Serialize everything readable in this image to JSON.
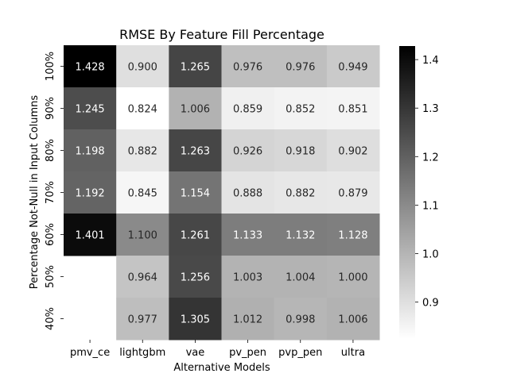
{
  "chart_data": {
    "type": "heatmap",
    "title": "RMSE By Feature Fill Percentage",
    "xlabel": "Alternative Models",
    "ylabel": "Percentage Not-Null in Input Columns",
    "columns": [
      "pmv_ce",
      "lightgbm",
      "vae",
      "pv_pen",
      "pvp_pen",
      "ultra"
    ],
    "rows": [
      "100%",
      "90%",
      "80%",
      "70%",
      "60%",
      "50%",
      "40%"
    ],
    "values": [
      [
        1.428,
        0.9,
        1.265,
        0.976,
        0.976,
        0.949
      ],
      [
        1.245,
        0.824,
        1.006,
        0.859,
        0.852,
        0.851
      ],
      [
        1.198,
        0.882,
        1.263,
        0.926,
        0.918,
        0.902
      ],
      [
        1.192,
        0.845,
        1.154,
        0.888,
        0.882,
        0.879
      ],
      [
        1.401,
        1.1,
        1.261,
        1.133,
        1.132,
        1.128
      ],
      [
        null,
        0.964,
        1.256,
        1.003,
        1.004,
        1.0
      ],
      [
        null,
        0.977,
        1.305,
        1.012,
        0.998,
        1.006
      ]
    ],
    "labels": [
      [
        "1.428",
        "0.900",
        "1.265",
        "0.976",
        "0.976",
        "0.949"
      ],
      [
        "1.245",
        "0.824",
        "1.006",
        "0.859",
        "0.852",
        "0.851"
      ],
      [
        "1.198",
        "0.882",
        "1.263",
        "0.926",
        "0.918",
        "0.902"
      ],
      [
        "1.192",
        "0.845",
        "1.154",
        "0.888",
        "0.882",
        "0.879"
      ],
      [
        "1.401",
        "1.100",
        "1.261",
        "1.133",
        "1.132",
        "1.128"
      ],
      [
        "",
        "0.964",
        "1.256",
        "1.003",
        "1.004",
        "1.000"
      ],
      [
        "",
        "0.977",
        "1.305",
        "1.012",
        "0.998",
        "1.006"
      ]
    ],
    "colormap": "Greys",
    "vmin": 0.824,
    "vmax": 1.428,
    "colorbar_ticks": [
      {
        "value": 0.9,
        "label": "0.9"
      },
      {
        "value": 1.0,
        "label": "1.0"
      },
      {
        "value": 1.1,
        "label": "1.1"
      },
      {
        "value": 1.2,
        "label": "1.2"
      },
      {
        "value": 1.3,
        "label": "1.3"
      },
      {
        "value": 1.4,
        "label": "1.4"
      }
    ],
    "colorbar_position": "right"
  }
}
